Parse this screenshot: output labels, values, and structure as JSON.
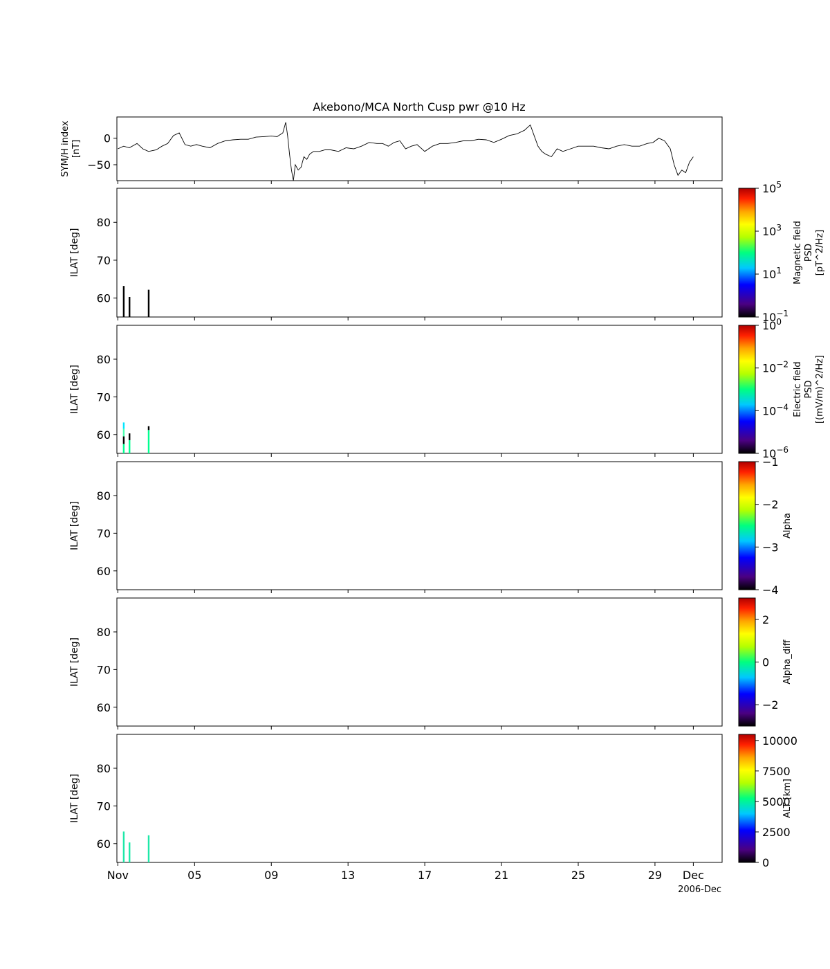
{
  "chart_data": {
    "type": "multi-panel time series",
    "title": "Akebono/MCA North Cusp pwr @10 Hz",
    "x_axis": {
      "tick_labels": [
        "Nov",
        "05",
        "09",
        "13",
        "17",
        "21",
        "25",
        "29",
        "Dec"
      ],
      "tick_days": [
        1,
        5,
        9,
        13,
        17,
        21,
        25,
        29,
        31
      ],
      "xlim": [
        0.95,
        32.5
      ],
      "offset_label": "2006-Dec"
    },
    "panels": [
      {
        "id": "symh",
        "type": "line",
        "ylabel": [
          "SYM/H index",
          "[nT]"
        ],
        "ylim": [
          -80,
          40
        ],
        "yticks": [
          0,
          -50
        ],
        "ytick_labels": [
          "0",
          "−50"
        ],
        "x": [
          1.0,
          1.3,
          1.6,
          2.0,
          2.3,
          2.6,
          3.0,
          3.3,
          3.6,
          3.9,
          4.2,
          4.5,
          4.8,
          5.1,
          5.4,
          5.8,
          6.2,
          6.6,
          7.0,
          7.4,
          7.8,
          8.2,
          8.6,
          9.0,
          9.3,
          9.6,
          9.75,
          9.85,
          9.95,
          10.05,
          10.15,
          10.25,
          10.4,
          10.55,
          10.7,
          10.85,
          11.0,
          11.2,
          11.5,
          11.8,
          12.1,
          12.5,
          12.9,
          13.3,
          13.7,
          14.1,
          14.5,
          14.8,
          15.1,
          15.4,
          15.7,
          16.0,
          16.3,
          16.6,
          17.0,
          17.4,
          17.8,
          18.2,
          18.6,
          19.0,
          19.4,
          19.8,
          20.2,
          20.6,
          21.0,
          21.4,
          21.8,
          22.2,
          22.5,
          22.7,
          22.9,
          23.1,
          23.3,
          23.6,
          23.9,
          24.2,
          24.6,
          25.0,
          25.4,
          25.8,
          26.2,
          26.6,
          27.0,
          27.4,
          27.8,
          28.2,
          28.6,
          28.9,
          29.2,
          29.5,
          29.8,
          30.0,
          30.2,
          30.4,
          30.6,
          30.8,
          31.0
        ],
        "y": [
          -20,
          -15,
          -18,
          -10,
          -20,
          -25,
          -22,
          -15,
          -10,
          5,
          10,
          -12,
          -15,
          -12,
          -15,
          -18,
          -10,
          -5,
          -3,
          -2,
          -2,
          2,
          3,
          4,
          3,
          10,
          30,
          5,
          -30,
          -60,
          -80,
          -50,
          -60,
          -55,
          -35,
          -40,
          -30,
          -25,
          -25,
          -22,
          -22,
          -25,
          -18,
          -20,
          -15,
          -8,
          -10,
          -10,
          -15,
          -8,
          -5,
          -20,
          -15,
          -12,
          -25,
          -15,
          -10,
          -10,
          -8,
          -5,
          -5,
          -2,
          -3,
          -8,
          -2,
          5,
          8,
          15,
          25,
          5,
          -15,
          -25,
          -30,
          -35,
          -20,
          -25,
          -20,
          -15,
          -15,
          -15,
          -18,
          -20,
          -15,
          -12,
          -15,
          -15,
          -10,
          -8,
          0,
          -5,
          -20,
          -50,
          -70,
          -60,
          -65,
          -45,
          -35
        ]
      },
      {
        "id": "bpsd",
        "type": "spectrogram",
        "ylabel": "ILAT [deg]",
        "ylim": [
          55,
          89
        ],
        "yticks": [
          80,
          70,
          60
        ],
        "ytick_labels": [
          "80",
          "70",
          "60"
        ],
        "colorbar": {
          "label": [
            "Magnetic field",
            "PSD",
            "[pT^2/Hz]"
          ],
          "scale": "log",
          "range": [
            0.1,
            100000
          ],
          "tick_labels": [
            "10^5",
            "10^3",
            "10^1",
            "10^-1"
          ]
        },
        "bars": [
          {
            "day": 1.3,
            "ilat": [
              55,
              63.2
            ],
            "color": "#000000"
          },
          {
            "day": 1.6,
            "ilat": [
              55,
              60.3
            ],
            "color": "#000000"
          },
          {
            "day": 2.6,
            "ilat": [
              55,
              62.2
            ],
            "color": "#000000"
          }
        ]
      },
      {
        "id": "epsd",
        "type": "spectrogram",
        "ylabel": "ILAT [deg]",
        "ylim": [
          55,
          89
        ],
        "yticks": [
          80,
          70,
          60
        ],
        "ytick_labels": [
          "80",
          "70",
          "60"
        ],
        "colorbar": {
          "label": [
            "Electric field",
            "PSD",
            "[(mV/m)^2/Hz]"
          ],
          "scale": "log",
          "range": [
            1e-06,
            1
          ],
          "tick_labels": [
            "10^0",
            "10^-2",
            "10^-4",
            "10^-6"
          ]
        },
        "bars": [
          {
            "day": 1.3,
            "ilat": [
              55,
              57.5
            ],
            "color": "#00ff90"
          },
          {
            "day": 1.3,
            "ilat": [
              57.5,
              59.5
            ],
            "color": "#000000"
          },
          {
            "day": 1.3,
            "ilat": [
              59.5,
              61.5
            ],
            "color": "#4cffb0"
          },
          {
            "day": 1.3,
            "ilat": [
              61.5,
              63.2
            ],
            "color": "#00e5ff"
          },
          {
            "day": 1.6,
            "ilat": [
              55,
              58.5
            ],
            "color": "#00ff90"
          },
          {
            "day": 1.6,
            "ilat": [
              58.5,
              60.3
            ],
            "color": "#000000"
          },
          {
            "day": 2.6,
            "ilat": [
              55,
              61.2
            ],
            "color": "#00ff90"
          },
          {
            "day": 2.6,
            "ilat": [
              61.2,
              62.2
            ],
            "color": "#000000"
          }
        ]
      },
      {
        "id": "alpha",
        "type": "spectrogram",
        "ylabel": "ILAT [deg]",
        "ylim": [
          55,
          89
        ],
        "yticks": [
          80,
          70,
          60
        ],
        "ytick_labels": [
          "80",
          "70",
          "60"
        ],
        "colorbar": {
          "label": [
            "Alpha"
          ],
          "scale": "linear",
          "range": [
            -4,
            -1
          ],
          "tick_labels": [
            "−1",
            "−2",
            "−3",
            "−4"
          ],
          "tick_values": [
            -1,
            -2,
            -3,
            -4
          ]
        },
        "bars": []
      },
      {
        "id": "alpha_diff",
        "type": "spectrogram",
        "ylabel": "ILAT [deg]",
        "ylim": [
          55,
          89
        ],
        "yticks": [
          80,
          70,
          60
        ],
        "ytick_labels": [
          "80",
          "70",
          "60"
        ],
        "colorbar": {
          "label": [
            "Alpha_diff"
          ],
          "scale": "linear",
          "range": [
            -3,
            3
          ],
          "tick_labels": [
            "2",
            "0",
            "−2"
          ],
          "tick_values": [
            2,
            0,
            -2
          ]
        },
        "bars": []
      },
      {
        "id": "alt",
        "type": "spectrogram",
        "ylabel": "ILAT [deg]",
        "ylim": [
          55,
          89
        ],
        "yticks": [
          80,
          70,
          60
        ],
        "ytick_labels": [
          "80",
          "70",
          "60"
        ],
        "colorbar": {
          "label": [
            "ALT [km]"
          ],
          "scale": "linear",
          "range": [
            0,
            10500
          ],
          "tick_labels": [
            "10000",
            "7500",
            "5000",
            "2500",
            "0"
          ],
          "tick_values": [
            10000,
            7500,
            5000,
            2500,
            0
          ]
        },
        "bars": [
          {
            "day": 1.3,
            "ilat": [
              55,
              63.2
            ],
            "color": "#1ee8a8"
          },
          {
            "day": 1.6,
            "ilat": [
              55,
              60.3
            ],
            "color": "#1ee8a8"
          },
          {
            "day": 2.6,
            "ilat": [
              55,
              62.2
            ],
            "color": "#1ee8a8"
          }
        ]
      }
    ]
  }
}
